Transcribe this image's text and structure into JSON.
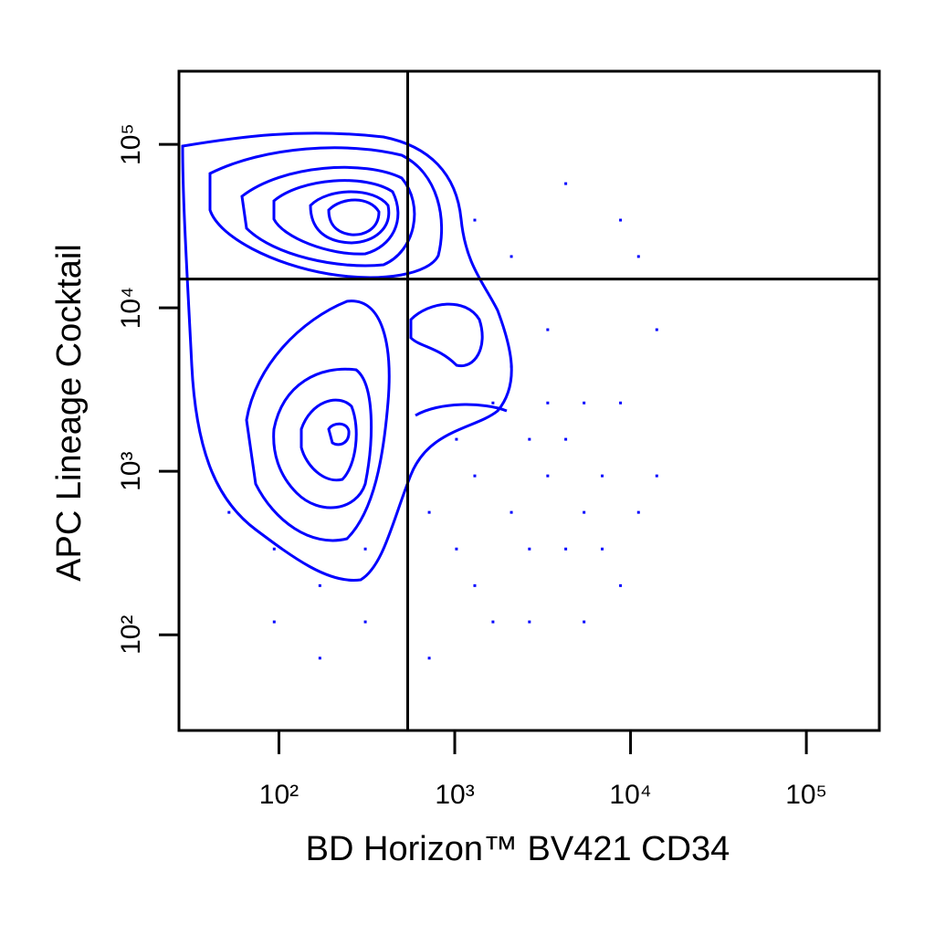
{
  "chart_data": {
    "type": "scatter",
    "x_label": "BD Horizon™ BV421 CD34",
    "y_label": "APC Lineage Cocktail",
    "log_x": true,
    "log_y": true,
    "xlim": [
      27,
      260000
    ],
    "ylim": [
      26,
      280000
    ],
    "xticks": [
      {
        "value": 100,
        "label": "10²"
      },
      {
        "value": 1000,
        "label": "10³"
      },
      {
        "value": 10000,
        "label": "10⁴"
      },
      {
        "value": 100000,
        "label": "10⁵"
      }
    ],
    "yticks": [
      {
        "value": 100,
        "label": "10²"
      },
      {
        "value": 1000,
        "label": "10³"
      },
      {
        "value": 10000,
        "label": "10⁴"
      },
      {
        "value": 100000,
        "label": "10⁵"
      }
    ],
    "gates": {
      "x": 540,
      "y": 15000
    },
    "color": "#0000ff",
    "x": [
      1023,
      1300,
      1650,
      2100,
      2660,
      3380,
      4280,
      5440,
      6900,
      8770,
      2660,
      1300,
      3380,
      4280,
      5440,
      2100,
      1650,
      716,
      1023,
      6900,
      11100,
      14100,
      8770,
      3380,
      2100,
      1300,
      4280,
      716,
      2660,
      5440,
      94,
      171,
      310,
      52,
      171,
      310,
      94,
      14100,
      11100,
      8770
    ],
    "values": [
      1570,
      938,
      2620,
      561,
      1570,
      938,
      335,
      561,
      938,
      200,
      335,
      200,
      2620,
      1570,
      2620,
      4390,
      120,
      561,
      335,
      335,
      561,
      938,
      2620,
      7350,
      20600,
      34400,
      57500,
      72,
      120,
      120,
      335,
      200,
      120,
      561,
      72,
      335,
      120,
      7350,
      20600,
      34400
    ]
  }
}
